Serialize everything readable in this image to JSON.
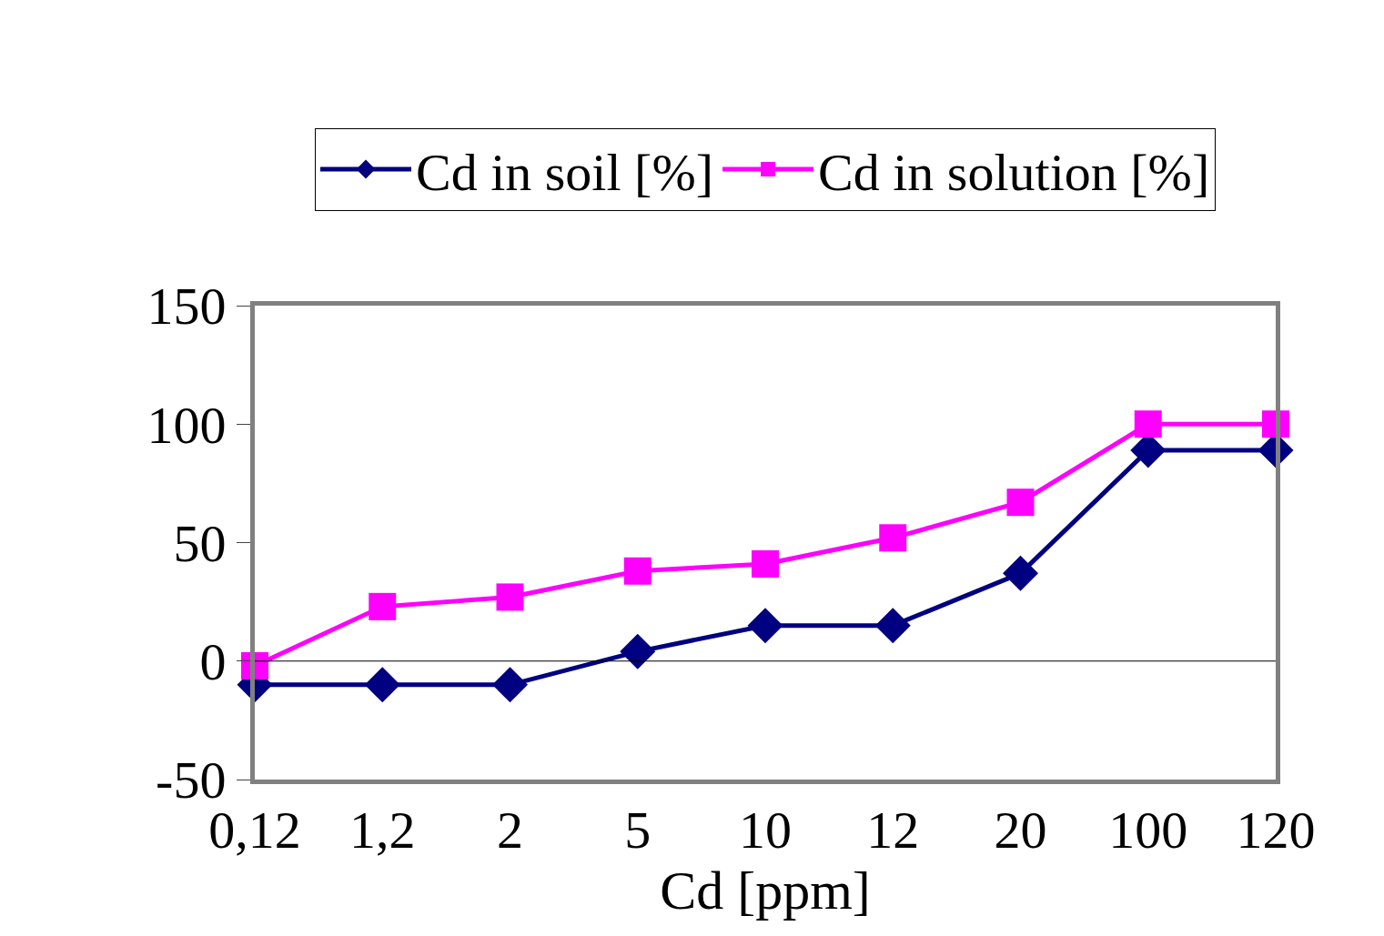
{
  "chart_data": {
    "type": "line",
    "xlabel": "Cd [ppm]",
    "categories": [
      "0,12",
      "1,2",
      "2",
      "5",
      "10",
      "12",
      "20",
      "100",
      "120"
    ],
    "series": [
      {
        "name": "Cd in soil [%]",
        "color": "#000080",
        "marker": "diamond",
        "values": [
          -10,
          -10,
          -10,
          4,
          15,
          15,
          37,
          89,
          89
        ]
      },
      {
        "name": "Cd in solution [%]",
        "color": "#ff00ff",
        "marker": "square",
        "values": [
          -2,
          23,
          27,
          38,
          41,
          52,
          67,
          100,
          100
        ]
      }
    ],
    "ylim": [
      -50,
      150
    ],
    "yticks": [
      -50,
      0,
      50,
      100,
      150
    ],
    "ref_lines": [
      {
        "axis": "y",
        "value": 0,
        "color": "#000000"
      }
    ],
    "legend": "top",
    "line_style": "solid"
  }
}
